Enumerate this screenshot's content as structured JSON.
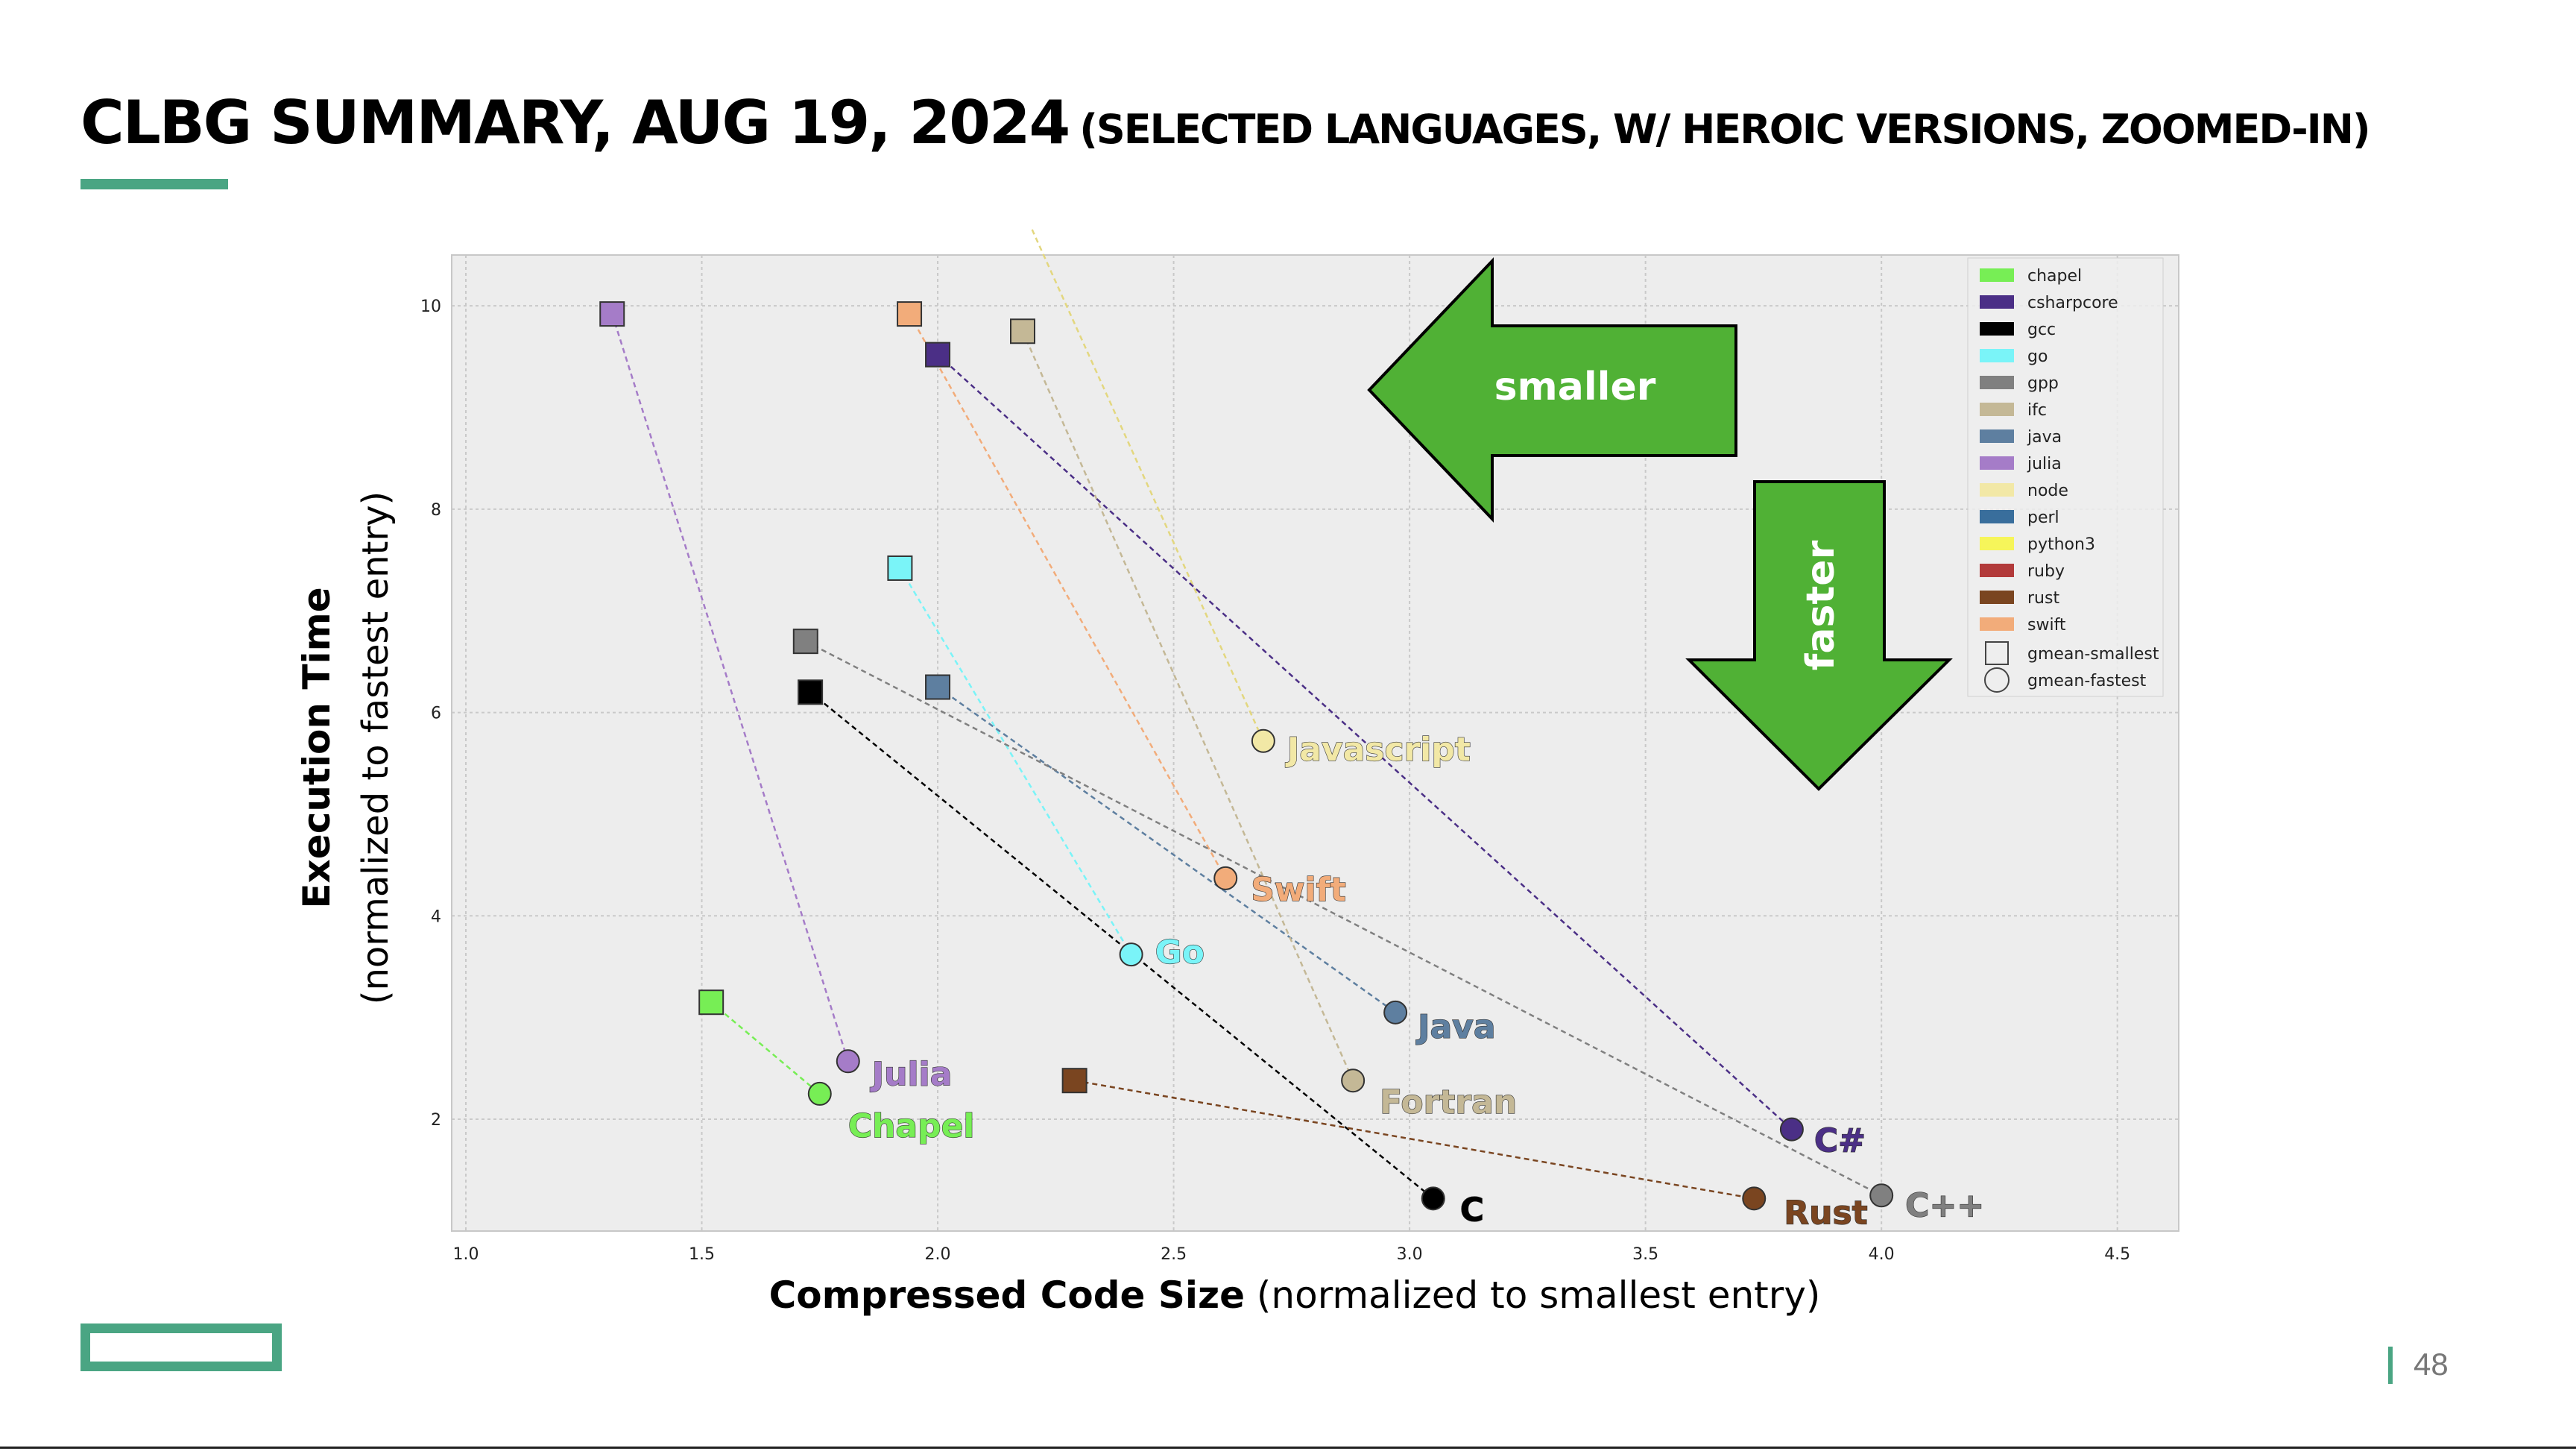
{
  "title": {
    "main": "CLBG SUMMARY, AUG 19, 2024",
    "sub": "(SELECTED LANGUAGES, W/ HEROIC VERSIONS, ZOOMED-IN)"
  },
  "page_number": "48",
  "colors": {
    "accent": "#4aa583",
    "arrow": "#50b135",
    "plot_bg": "#ededed"
  },
  "arrows": {
    "left_label": "smaller",
    "down_label": "faster"
  },
  "chart_data": {
    "type": "scatter",
    "xlabel_bold": "Compressed Code Size",
    "xlabel_rest": " (normalized to smallest entry)",
    "ylabel_bold": "Execution Time",
    "ylabel_rest": "(normalized to fastest entry)",
    "xlim": [
      0.97,
      4.63
    ],
    "ylim": [
      0.9,
      10.5
    ],
    "xticks": [
      1.0,
      1.5,
      2.0,
      2.5,
      3.0,
      3.5,
      4.0,
      4.5
    ],
    "xtick_labels": [
      "1.0",
      "1.5",
      "2.0",
      "2.5",
      "3.0",
      "3.5",
      "4.0",
      "4.5"
    ],
    "yticks": [
      2,
      4,
      6,
      8,
      10
    ],
    "ytick_labels": [
      "2",
      "4",
      "6",
      "8",
      "10"
    ],
    "grid": true,
    "legend_position": "top-right",
    "legend": [
      {
        "name": "chapel",
        "color": "#77ee55"
      },
      {
        "name": "csharpcore",
        "color": "#4b2f86"
      },
      {
        "name": "gcc",
        "color": "#000000"
      },
      {
        "name": "go",
        "color": "#7af4f8"
      },
      {
        "name": "gpp",
        "color": "#808080"
      },
      {
        "name": "ifc",
        "color": "#c4b896"
      },
      {
        "name": "java",
        "color": "#5e7fa0"
      },
      {
        "name": "julia",
        "color": "#a57cc8"
      },
      {
        "name": "node",
        "color": "#f2e8a6"
      },
      {
        "name": "perl",
        "color": "#396e9c"
      },
      {
        "name": "python3",
        "color": "#f6f55a"
      },
      {
        "name": "ruby",
        "color": "#b23a3a"
      },
      {
        "name": "rust",
        "color": "#7a4520"
      },
      {
        "name": "swift",
        "color": "#f2ac7a"
      }
    ],
    "legend_markers": [
      {
        "name": "gmean-smallest",
        "shape": "square"
      },
      {
        "name": "gmean-fastest",
        "shape": "circle"
      }
    ],
    "series": [
      {
        "name": "chapel",
        "label": "Chapel",
        "color": "#77ee55",
        "smallest": [
          1.52,
          3.15
        ],
        "fastest": [
          1.75,
          2.25
        ]
      },
      {
        "name": "julia",
        "label": "Julia",
        "color": "#a57cc8",
        "smallest": [
          1.31,
          9.92
        ],
        "fastest": [
          1.81,
          2.57
        ]
      },
      {
        "name": "go",
        "label": "Go",
        "color": "#7af4f8",
        "smallest": [
          1.92,
          7.42
        ],
        "fastest": [
          2.41,
          3.62
        ]
      },
      {
        "name": "swift",
        "label": "Swift",
        "color": "#f2ac7a",
        "smallest": [
          1.94,
          9.92
        ],
        "fastest": [
          2.61,
          4.37
        ]
      },
      {
        "name": "node",
        "label": "Javascript",
        "color": "#f2e8a6",
        "smallest": [
          2.2,
          10.75
        ],
        "fastest": [
          2.69,
          5.72
        ]
      },
      {
        "name": "gcc",
        "label": "C",
        "color": "#000000",
        "smallest": [
          1.73,
          6.2
        ],
        "fastest": [
          3.05,
          1.22
        ]
      },
      {
        "name": "java",
        "label": "Java",
        "color": "#5e7fa0",
        "smallest": [
          2.0,
          6.25
        ],
        "fastest": [
          2.97,
          3.05
        ]
      },
      {
        "name": "ifc",
        "label": "Fortran",
        "color": "#c4b896",
        "smallest": [
          2.18,
          9.75
        ],
        "fastest": [
          2.88,
          2.38
        ]
      },
      {
        "name": "csharpcore",
        "label": "C#",
        "color": "#4b2f86",
        "smallest": [
          2.0,
          9.52
        ],
        "fastest": [
          3.81,
          1.9
        ]
      },
      {
        "name": "rust",
        "label": "Rust",
        "color": "#7a4520",
        "smallest": [
          2.29,
          2.38
        ],
        "fastest": [
          3.73,
          1.22
        ]
      },
      {
        "name": "gpp",
        "label": "C++",
        "color": "#808080",
        "smallest": [
          1.72,
          6.7
        ],
        "fastest": [
          4.0,
          1.25
        ]
      }
    ]
  }
}
